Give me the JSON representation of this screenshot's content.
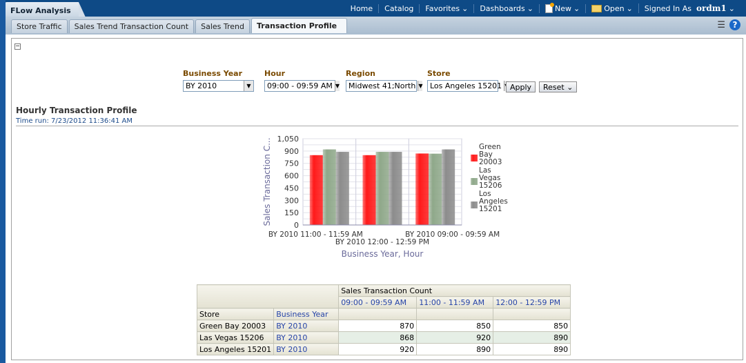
{
  "app_title": "FLow Analysis",
  "menu": {
    "home": "Home",
    "catalog": "Catalog",
    "favorites": "Favorites",
    "dashboards": "Dashboards",
    "new": "New",
    "open": "Open",
    "signed_in_as": "Signed In As",
    "user": "ordm1"
  },
  "tabs": [
    "Store Traffic",
    "Sales Trend Transaction Count",
    "Sales Trend",
    "Transaction Profile"
  ],
  "prompts": {
    "business_year": {
      "label": "Business Year",
      "value": "BY 2010"
    },
    "hour": {
      "label": "Hour",
      "value": "09:00 - 09:59 AM"
    },
    "region": {
      "label": "Region",
      "value": "Midwest 41;North"
    },
    "store": {
      "label": "Store",
      "value": "Los Angeles 15201"
    },
    "apply": "Apply",
    "reset": "Reset"
  },
  "report": {
    "title": "Hourly Transaction Profile",
    "time_run": "Time run: 7/23/2012 11:36:41 AM"
  },
  "chart_data": {
    "type": "bar",
    "categories": [
      "BY 2010 11:00 - 11:59 AM",
      "BY 2010 12:00 - 12:59 PM",
      "BY 2010 09:00 - 09:59 AM"
    ],
    "series": [
      {
        "name": "Green Bay 20003",
        "color": "#ff1a1a",
        "values": [
          850,
          850,
          870
        ]
      },
      {
        "name": "Las Vegas 15206",
        "color": "#8fa88a",
        "values": [
          920,
          890,
          868
        ]
      },
      {
        "name": "Los Angeles 15201",
        "color": "#8c8c8c",
        "values": [
          890,
          890,
          920
        ]
      }
    ],
    "xlabel": "Business Year, Hour",
    "ylabel": "Sales Transaction C...",
    "ylim": [
      0,
      1050
    ],
    "yticks": [
      "0",
      "150",
      "300",
      "450",
      "600",
      "750",
      "900",
      "1,050"
    ],
    "legend": "right"
  },
  "table": {
    "measure": "Sales Transaction Count",
    "columns": [
      "09:00 - 09:59 AM",
      "11:00 - 11:59 AM",
      "12:00 - 12:59 PM"
    ],
    "row_headers": [
      "Store",
      "Business Year"
    ],
    "rows": [
      {
        "store": "Green Bay 20003",
        "year": "BY 2010",
        "values": [
          "870",
          "850",
          "850"
        ]
      },
      {
        "store": "Las Vegas 15206",
        "year": "BY 2010",
        "values": [
          "868",
          "920",
          "890"
        ]
      },
      {
        "store": "Los Angeles 15201",
        "year": "BY 2010",
        "values": [
          "920",
          "890",
          "890"
        ]
      }
    ]
  }
}
